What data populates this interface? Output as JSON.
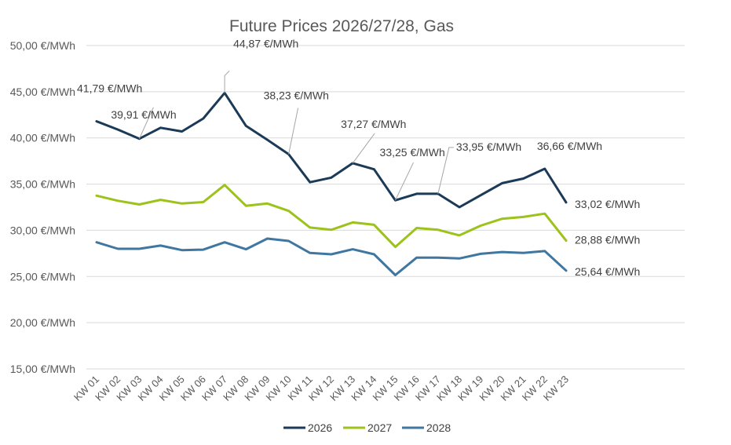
{
  "chart_data": {
    "type": "line",
    "title": "Future Prices 2026/27/28, Gas",
    "xlabel": "",
    "ylabel": "",
    "ylim": [
      15,
      50
    ],
    "y_ticks": [
      "15,00 €/MWh",
      "20,00 €/MWh",
      "25,00 €/MWh",
      "30,00 €/MWh",
      "35,00 €/MWh",
      "40,00 €/MWh",
      "45,00 €/MWh",
      "50,00 €/MWh"
    ],
    "grid": true,
    "legend_position": "bottom",
    "categories": [
      "KW 01",
      "KW 02",
      "KW 03",
      "KW 04",
      "KW 05",
      "KW 06",
      "KW 07",
      "KW 08",
      "KW 09",
      "KW 10",
      "KW 11",
      "KW 12",
      "KW 13",
      "KW 14",
      "KW 15",
      "KW 16",
      "KW 17",
      "KW 18",
      "KW 19",
      "KW 20",
      "KW 21",
      "KW 22",
      "KW 23"
    ],
    "series": [
      {
        "name": "2026",
        "color": "#1b3a57",
        "values": [
          41.79,
          40.9,
          39.91,
          41.1,
          40.7,
          42.1,
          44.87,
          41.3,
          39.8,
          38.23,
          35.2,
          35.7,
          37.27,
          36.6,
          33.25,
          33.95,
          33.95,
          32.5,
          33.8,
          35.1,
          35.6,
          36.66,
          33.02
        ]
      },
      {
        "name": "2027",
        "color": "#9dc21a",
        "values": [
          33.75,
          33.2,
          32.8,
          33.3,
          32.9,
          33.05,
          34.9,
          32.65,
          32.9,
          32.1,
          30.3,
          30.05,
          30.85,
          30.6,
          28.2,
          30.25,
          30.05,
          29.45,
          30.5,
          31.25,
          31.45,
          31.8,
          28.88
        ]
      },
      {
        "name": "2028",
        "color": "#3f77a0",
        "values": [
          28.7,
          28.0,
          28.0,
          28.35,
          27.85,
          27.9,
          28.7,
          27.95,
          29.1,
          28.85,
          27.55,
          27.4,
          27.95,
          27.4,
          25.15,
          27.05,
          27.05,
          26.95,
          27.45,
          27.65,
          27.55,
          27.75,
          25.64
        ]
      }
    ],
    "annotations": [
      {
        "text": "41,79 €/MWh",
        "series": 0,
        "index": 0
      },
      {
        "text": "39,91 €/MWh",
        "series": 0,
        "index": 2
      },
      {
        "text": "44,87 €/MWh",
        "series": 0,
        "index": 6
      },
      {
        "text": "38,23 €/MWh",
        "series": 0,
        "index": 9
      },
      {
        "text": "37,27 €/MWh",
        "series": 0,
        "index": 12
      },
      {
        "text": "33,25 €/MWh",
        "series": 0,
        "index": 14
      },
      {
        "text": "33,95 €/MWh",
        "series": 0,
        "index": 16
      },
      {
        "text": "36,66 €/MWh",
        "series": 0,
        "index": 21
      },
      {
        "text": "33,02 €/MWh",
        "series": 0,
        "index": 22
      },
      {
        "text": "28,88 €/MWh",
        "series": 1,
        "index": 22
      },
      {
        "text": "25,64 €/MWh",
        "series": 2,
        "index": 22
      }
    ]
  }
}
